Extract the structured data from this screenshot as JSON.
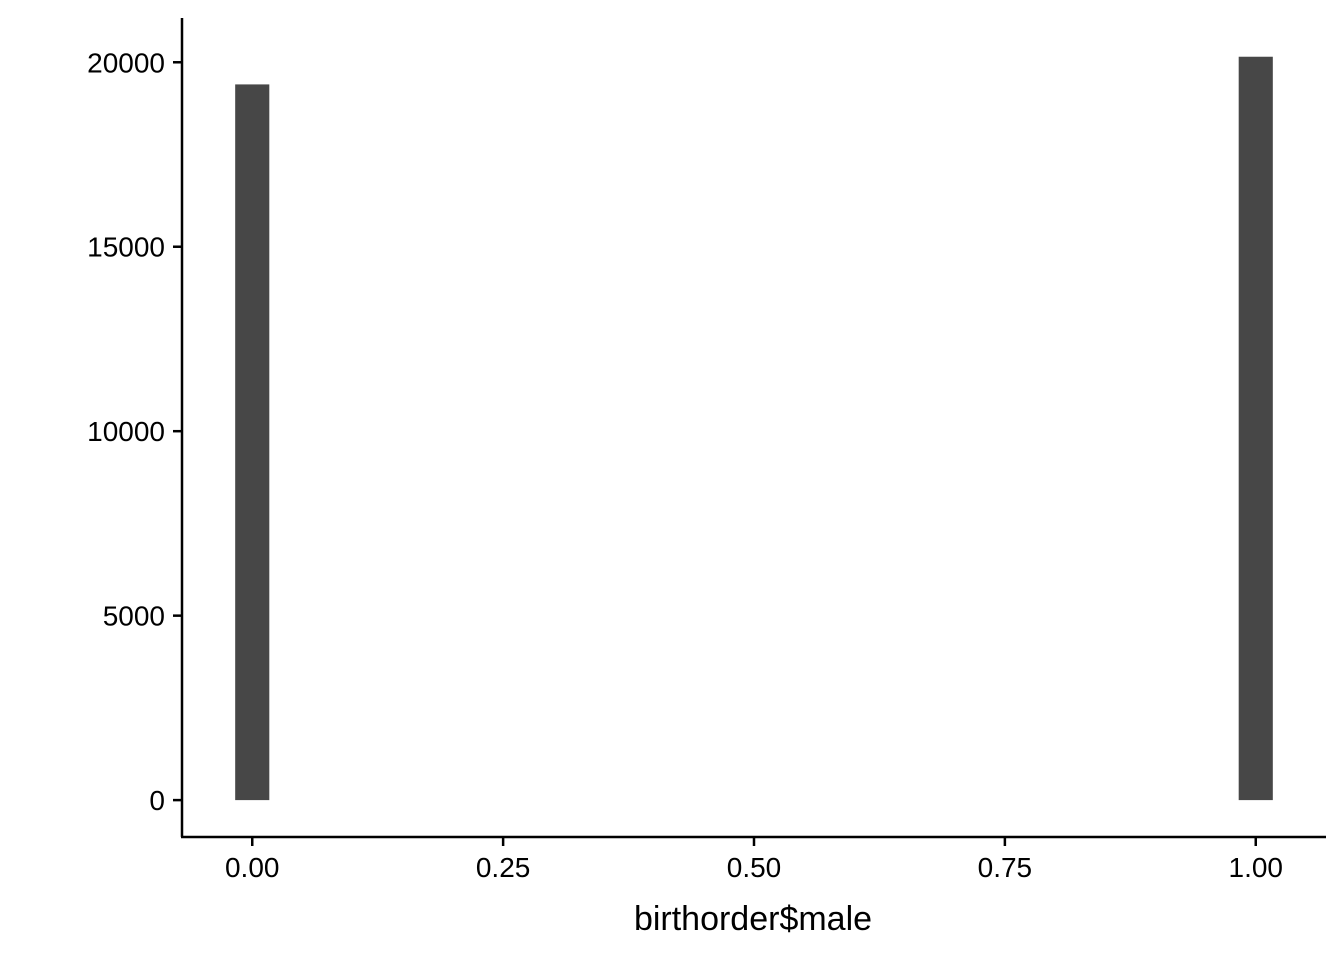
{
  "chart_data": {
    "type": "bar",
    "title": "",
    "xlabel": "birthorder$male",
    "ylabel": "",
    "x": [
      0,
      1
    ],
    "values": [
      19400,
      20150
    ],
    "xlim": [
      -0.07,
      1.07
    ],
    "ylim": [
      -1000,
      21200
    ],
    "xticks": [
      0,
      0.25,
      0.5,
      0.75,
      1
    ],
    "xtick_labels": [
      "0.00",
      "0.25",
      "0.50",
      "0.75",
      "1.00"
    ],
    "yticks": [
      0,
      5000,
      10000,
      15000,
      20000
    ],
    "ytick_labels": [
      "0",
      "5000",
      "10000",
      "15000",
      "20000"
    ],
    "bar_width": 0.034,
    "bar_color": "#474747",
    "grid": false,
    "legend": "none"
  }
}
